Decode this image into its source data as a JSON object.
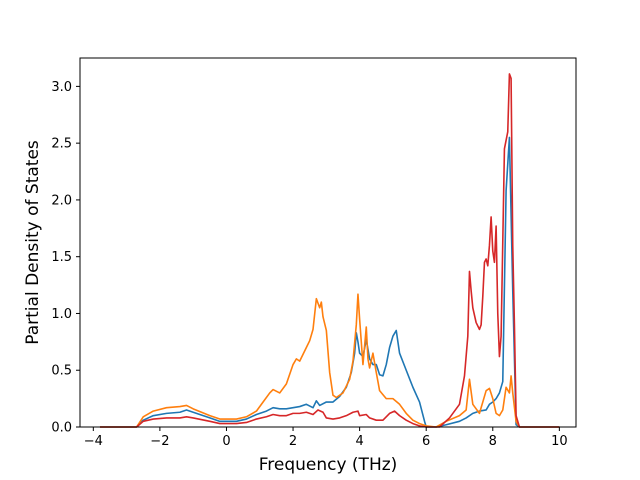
{
  "chart_data": {
    "type": "line",
    "title": "",
    "xlabel": "Frequency (THz)",
    "ylabel": "Partial Density of States",
    "xlim": [
      -4.4,
      10.5
    ],
    "ylim": [
      0,
      3.25
    ],
    "xticks": [
      -4,
      -2,
      0,
      2,
      4,
      6,
      8,
      10
    ],
    "xtick_labels": [
      "−4",
      "−2",
      "0",
      "2",
      "4",
      "6",
      "8",
      "10"
    ],
    "yticks": [
      0,
      0.5,
      1.0,
      1.5,
      2.0,
      2.5,
      3.0
    ],
    "ytick_labels": [
      "0.0",
      "0.5",
      "1.0",
      "1.5",
      "2.0",
      "2.5",
      "3.0"
    ],
    "grid": false,
    "legend": "none",
    "series": [
      {
        "color": "#1f77b4",
        "points": [
          [
            -3.8,
            0
          ],
          [
            -2.7,
            0
          ],
          [
            -2.5,
            0.06
          ],
          [
            -2.2,
            0.1
          ],
          [
            -1.8,
            0.12
          ],
          [
            -1.4,
            0.13
          ],
          [
            -1.2,
            0.15
          ],
          [
            -1.0,
            0.13
          ],
          [
            -0.5,
            0.08
          ],
          [
            -0.2,
            0.05
          ],
          [
            0,
            0.05
          ],
          [
            0.3,
            0.05
          ],
          [
            0.6,
            0.07
          ],
          [
            0.9,
            0.11
          ],
          [
            1.2,
            0.14
          ],
          [
            1.4,
            0.17
          ],
          [
            1.6,
            0.16
          ],
          [
            1.8,
            0.16
          ],
          [
            2.0,
            0.17
          ],
          [
            2.2,
            0.18
          ],
          [
            2.4,
            0.2
          ],
          [
            2.6,
            0.17
          ],
          [
            2.7,
            0.23
          ],
          [
            2.8,
            0.19
          ],
          [
            3.0,
            0.22
          ],
          [
            3.2,
            0.22
          ],
          [
            3.4,
            0.27
          ],
          [
            3.6,
            0.35
          ],
          [
            3.75,
            0.48
          ],
          [
            3.85,
            0.65
          ],
          [
            3.9,
            0.83
          ],
          [
            3.95,
            0.75
          ],
          [
            4.0,
            0.65
          ],
          [
            4.1,
            0.62
          ],
          [
            4.2,
            0.77
          ],
          [
            4.3,
            0.6
          ],
          [
            4.4,
            0.55
          ],
          [
            4.5,
            0.55
          ],
          [
            4.6,
            0.46
          ],
          [
            4.7,
            0.45
          ],
          [
            4.8,
            0.55
          ],
          [
            4.9,
            0.7
          ],
          [
            5.0,
            0.8
          ],
          [
            5.1,
            0.85
          ],
          [
            5.2,
            0.65
          ],
          [
            5.4,
            0.5
          ],
          [
            5.6,
            0.35
          ],
          [
            5.8,
            0.22
          ],
          [
            5.95,
            0.05
          ],
          [
            6.0,
            0
          ],
          [
            6.3,
            0
          ],
          [
            6.6,
            0.02
          ],
          [
            7.0,
            0.05
          ],
          [
            7.2,
            0.08
          ],
          [
            7.4,
            0.12
          ],
          [
            7.6,
            0.14
          ],
          [
            7.8,
            0.15
          ],
          [
            7.9,
            0.2
          ],
          [
            8.0,
            0.22
          ],
          [
            8.1,
            0.25
          ],
          [
            8.2,
            0.3
          ],
          [
            8.3,
            0.4
          ],
          [
            8.4,
            2.08
          ],
          [
            8.5,
            2.55
          ],
          [
            8.6,
            1.2
          ],
          [
            8.7,
            0.02
          ],
          [
            8.8,
            0
          ],
          [
            10,
            0
          ]
        ]
      },
      {
        "color": "#ff7f0e",
        "points": [
          [
            -3.8,
            0
          ],
          [
            -2.7,
            0
          ],
          [
            -2.5,
            0.09
          ],
          [
            -2.2,
            0.14
          ],
          [
            -1.8,
            0.17
          ],
          [
            -1.4,
            0.18
          ],
          [
            -1.2,
            0.19
          ],
          [
            -1.0,
            0.16
          ],
          [
            -0.5,
            0.1
          ],
          [
            -0.2,
            0.07
          ],
          [
            0,
            0.07
          ],
          [
            0.3,
            0.07
          ],
          [
            0.6,
            0.09
          ],
          [
            0.9,
            0.14
          ],
          [
            1.1,
            0.22
          ],
          [
            1.3,
            0.3
          ],
          [
            1.4,
            0.33
          ],
          [
            1.6,
            0.3
          ],
          [
            1.8,
            0.38
          ],
          [
            2.0,
            0.55
          ],
          [
            2.1,
            0.6
          ],
          [
            2.2,
            0.58
          ],
          [
            2.4,
            0.7
          ],
          [
            2.5,
            0.76
          ],
          [
            2.6,
            0.86
          ],
          [
            2.7,
            1.13
          ],
          [
            2.8,
            1.05
          ],
          [
            2.85,
            1.1
          ],
          [
            2.9,
            0.97
          ],
          [
            3.0,
            0.85
          ],
          [
            3.1,
            0.48
          ],
          [
            3.2,
            0.28
          ],
          [
            3.3,
            0.26
          ],
          [
            3.5,
            0.3
          ],
          [
            3.7,
            0.42
          ],
          [
            3.8,
            0.58
          ],
          [
            3.9,
            0.9
          ],
          [
            3.95,
            1.17
          ],
          [
            4.0,
            0.95
          ],
          [
            4.1,
            0.55
          ],
          [
            4.2,
            0.88
          ],
          [
            4.25,
            0.6
          ],
          [
            4.3,
            0.52
          ],
          [
            4.4,
            0.65
          ],
          [
            4.5,
            0.48
          ],
          [
            4.6,
            0.32
          ],
          [
            4.8,
            0.25
          ],
          [
            5.0,
            0.25
          ],
          [
            5.2,
            0.2
          ],
          [
            5.4,
            0.12
          ],
          [
            5.6,
            0.06
          ],
          [
            5.8,
            0.03
          ],
          [
            6.0,
            0.01
          ],
          [
            6.3,
            0
          ],
          [
            6.6,
            0.05
          ],
          [
            7.0,
            0.1
          ],
          [
            7.2,
            0.15
          ],
          [
            7.3,
            0.42
          ],
          [
            7.4,
            0.2
          ],
          [
            7.6,
            0.12
          ],
          [
            7.8,
            0.32
          ],
          [
            7.9,
            0.34
          ],
          [
            8.0,
            0.25
          ],
          [
            8.1,
            0.12
          ],
          [
            8.2,
            0.1
          ],
          [
            8.3,
            0.15
          ],
          [
            8.4,
            0.35
          ],
          [
            8.5,
            0.3
          ],
          [
            8.55,
            0.45
          ],
          [
            8.6,
            0.3
          ],
          [
            8.7,
            0.05
          ],
          [
            8.8,
            0
          ],
          [
            10,
            0
          ]
        ]
      },
      {
        "color": "#d62728",
        "points": [
          [
            -3.8,
            0
          ],
          [
            -2.7,
            0
          ],
          [
            -2.5,
            0.05
          ],
          [
            -2.2,
            0.07
          ],
          [
            -1.8,
            0.08
          ],
          [
            -1.4,
            0.08
          ],
          [
            -1.2,
            0.09
          ],
          [
            -1.0,
            0.08
          ],
          [
            -0.5,
            0.05
          ],
          [
            -0.2,
            0.03
          ],
          [
            0,
            0.03
          ],
          [
            0.3,
            0.03
          ],
          [
            0.6,
            0.04
          ],
          [
            0.9,
            0.07
          ],
          [
            1.2,
            0.09
          ],
          [
            1.4,
            0.11
          ],
          [
            1.6,
            0.1
          ],
          [
            1.8,
            0.1
          ],
          [
            2.0,
            0.12
          ],
          [
            2.2,
            0.12
          ],
          [
            2.4,
            0.13
          ],
          [
            2.6,
            0.11
          ],
          [
            2.75,
            0.15
          ],
          [
            2.9,
            0.13
          ],
          [
            3.0,
            0.08
          ],
          [
            3.2,
            0.07
          ],
          [
            3.4,
            0.08
          ],
          [
            3.6,
            0.1
          ],
          [
            3.8,
            0.13
          ],
          [
            3.95,
            0.14
          ],
          [
            4.0,
            0.1
          ],
          [
            4.2,
            0.11
          ],
          [
            4.3,
            0.08
          ],
          [
            4.5,
            0.06
          ],
          [
            4.7,
            0.06
          ],
          [
            4.9,
            0.12
          ],
          [
            5.05,
            0.14
          ],
          [
            5.2,
            0.1
          ],
          [
            5.4,
            0.06
          ],
          [
            5.6,
            0.03
          ],
          [
            5.8,
            0.01
          ],
          [
            6.0,
            0
          ],
          [
            6.2,
            0
          ],
          [
            6.4,
            0
          ],
          [
            6.7,
            0.08
          ],
          [
            7.0,
            0.2
          ],
          [
            7.15,
            0.45
          ],
          [
            7.25,
            0.8
          ],
          [
            7.3,
            1.37
          ],
          [
            7.35,
            1.2
          ],
          [
            7.4,
            1.05
          ],
          [
            7.5,
            0.92
          ],
          [
            7.6,
            0.86
          ],
          [
            7.65,
            0.9
          ],
          [
            7.7,
            1.15
          ],
          [
            7.75,
            1.45
          ],
          [
            7.8,
            1.48
          ],
          [
            7.85,
            1.42
          ],
          [
            7.9,
            1.6
          ],
          [
            7.95,
            1.85
          ],
          [
            8.0,
            1.55
          ],
          [
            8.05,
            1.45
          ],
          [
            8.1,
            1.77
          ],
          [
            8.15,
            1.0
          ],
          [
            8.2,
            0.62
          ],
          [
            8.25,
            0.8
          ],
          [
            8.35,
            2.45
          ],
          [
            8.45,
            2.6
          ],
          [
            8.5,
            3.11
          ],
          [
            8.55,
            3.07
          ],
          [
            8.6,
            1.6
          ],
          [
            8.65,
            0.9
          ],
          [
            8.7,
            0.1
          ],
          [
            8.8,
            0
          ],
          [
            10,
            0
          ]
        ]
      }
    ]
  }
}
